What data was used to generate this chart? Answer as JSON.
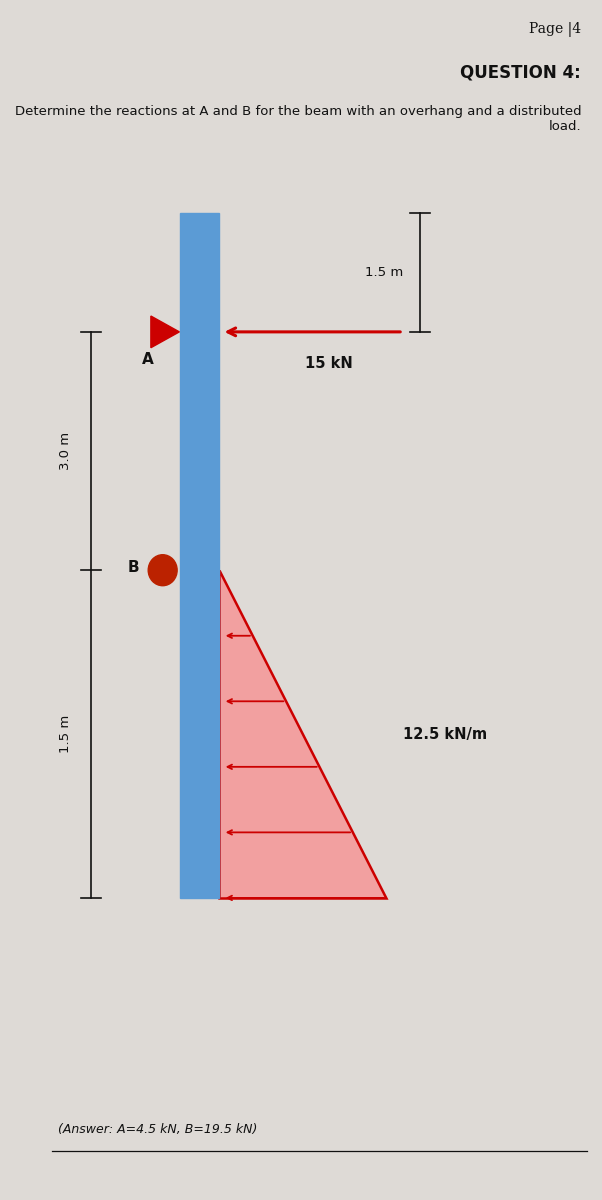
{
  "page_label": "Page |4",
  "question_title": "QUESTION 4:",
  "question_text": "Determine the reactions at A and B for the beam with an overhang and a distributed load.",
  "point_load_label": "15 kN",
  "dist_load_label": "12.5 kN/m",
  "dim_1": "1.5 m",
  "dim_2": "3.0 m",
  "dim_3": "1.5 m",
  "answer_text": "(Answer: A=4.5 kN, B=19.5 kN)",
  "bg_color": "#dedad6",
  "beam_color": "#5b9bd5",
  "load_color": "#cc0000",
  "dist_fill_color": "#f2a0a0",
  "support_A_color": "#cc0000",
  "support_B_color": "#bb2200",
  "text_color": "#111111"
}
